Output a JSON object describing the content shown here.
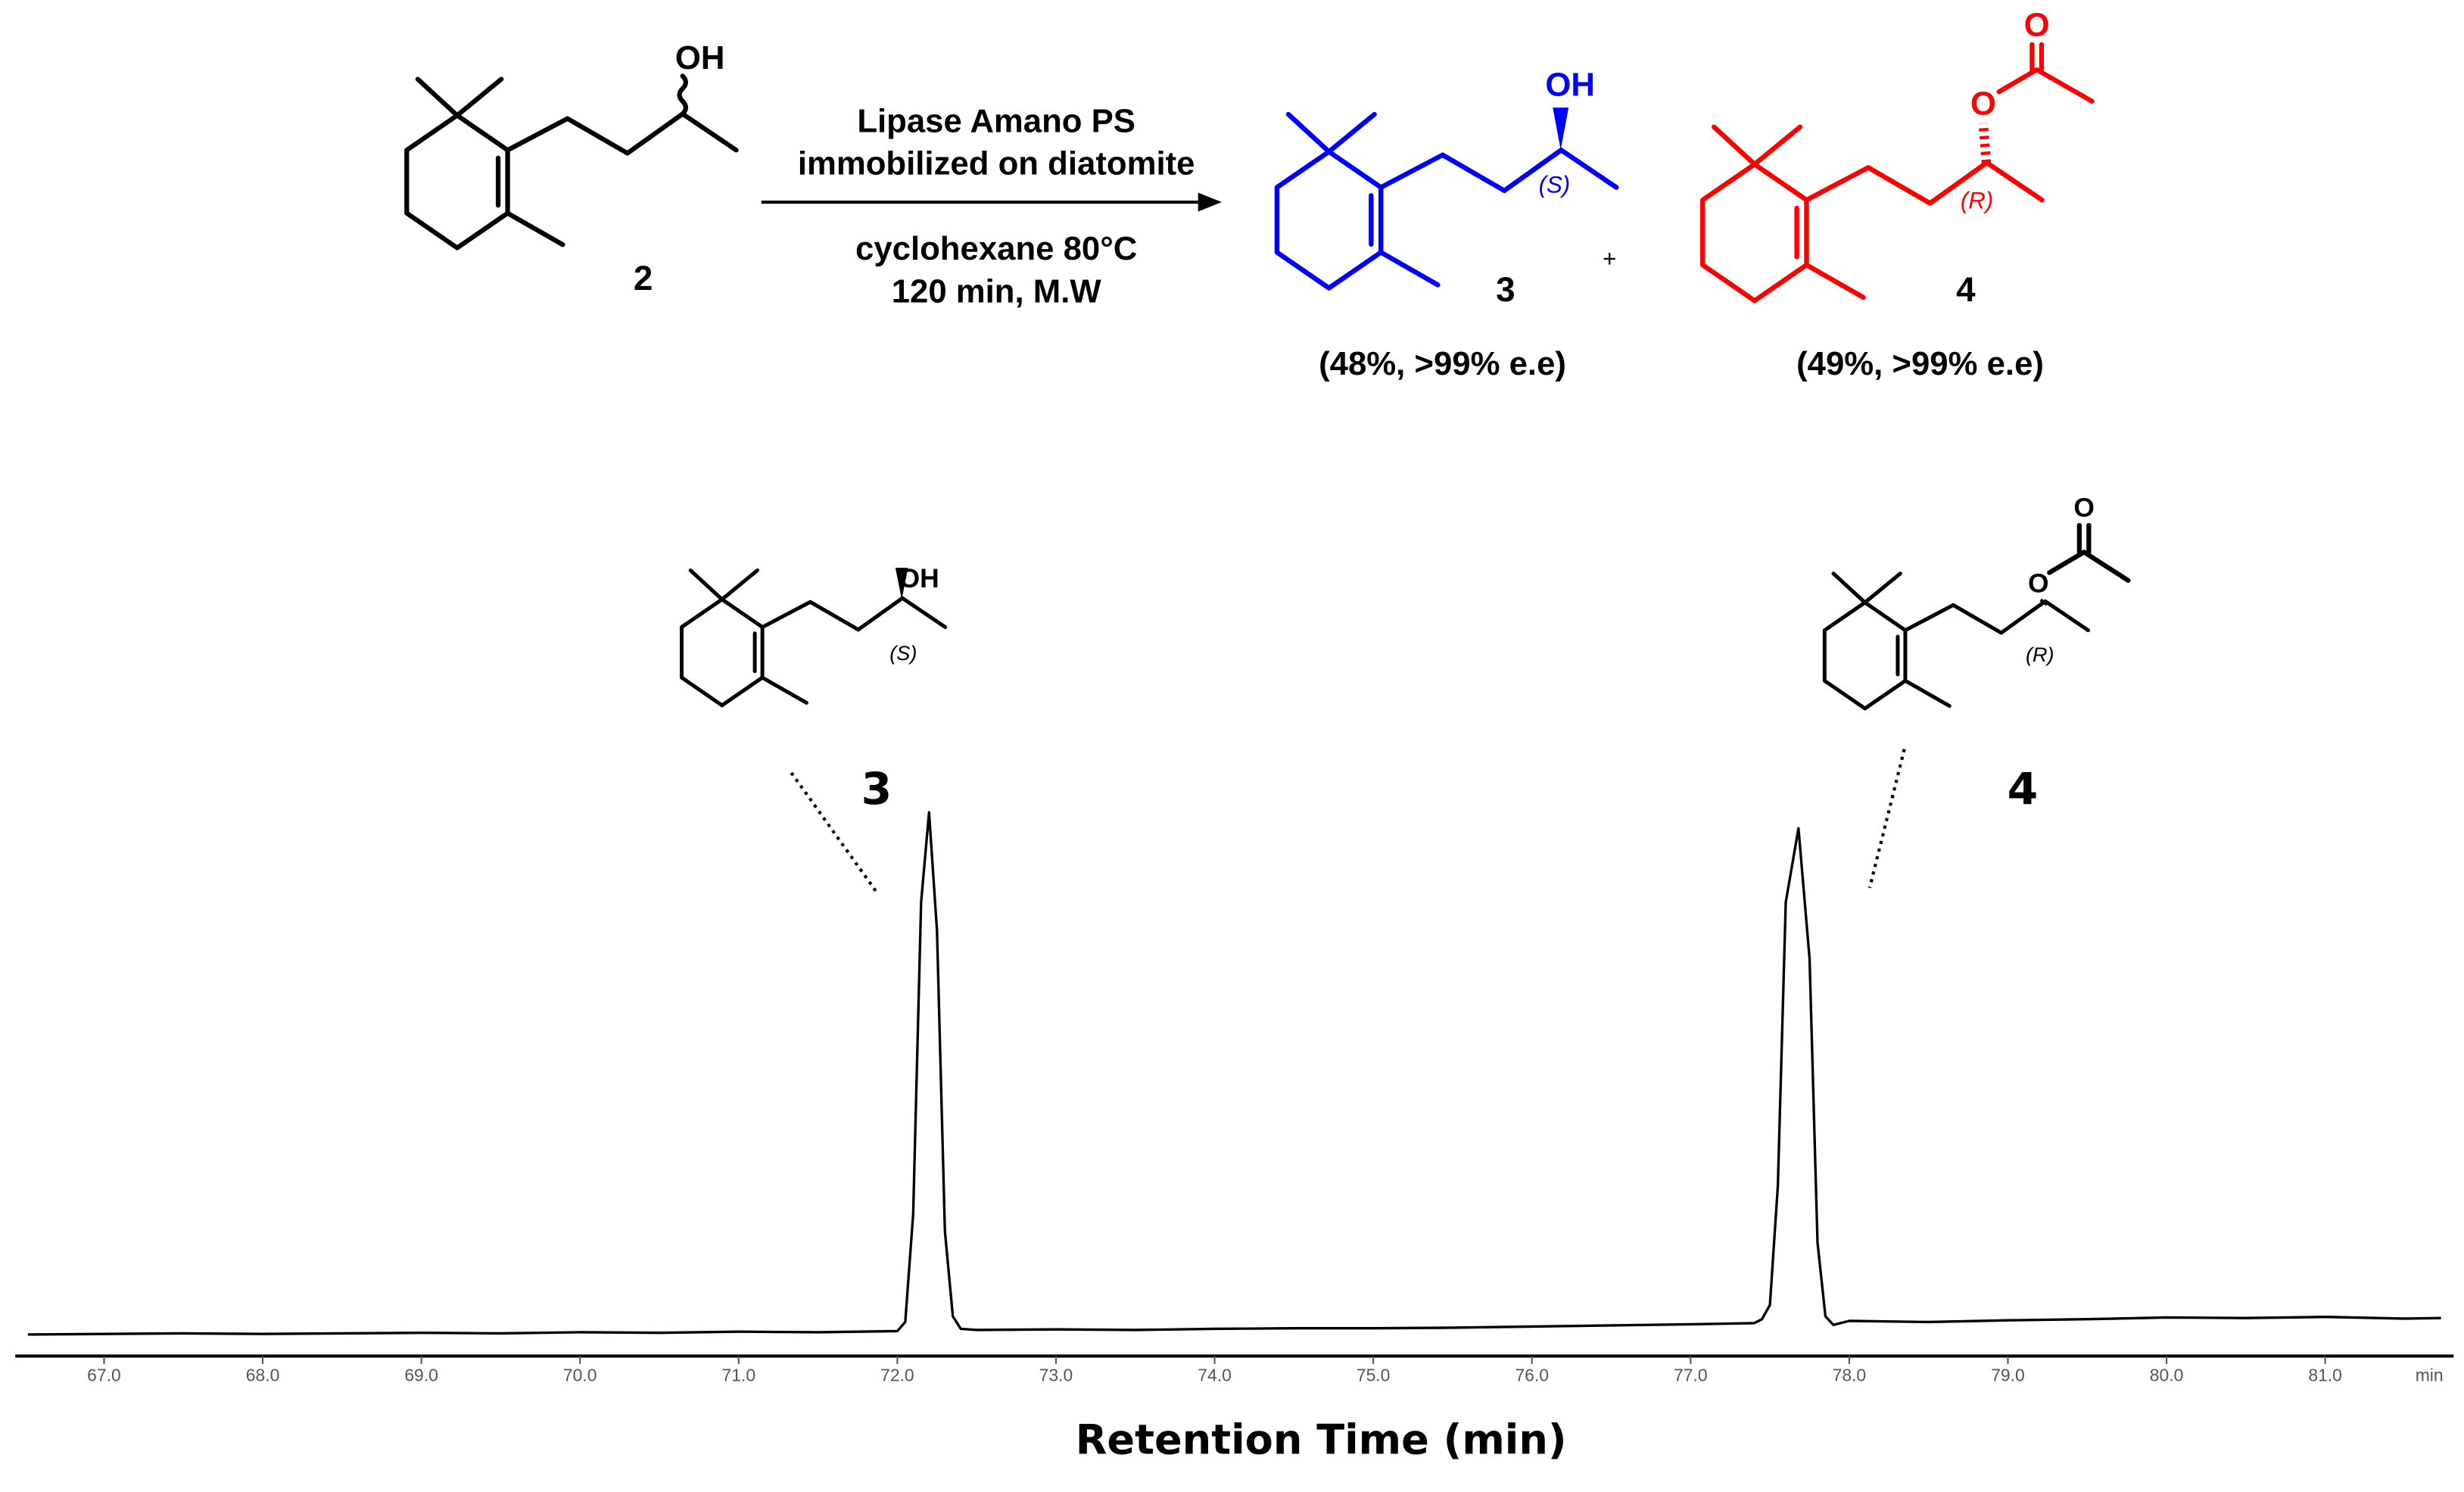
{
  "scheme": {
    "reagents": [
      "Lipase Amano PS",
      "immobilized on diatomite",
      "cyclohexane 80°C",
      "120 min, M.W"
    ],
    "plus": "+",
    "compound_labels": [
      "2",
      "3",
      "4"
    ],
    "yields": [
      "(48%, >99% e.e)",
      "(49%, >99% e.e)"
    ],
    "atom_labels": [
      "OH",
      "OH",
      "(S)",
      "O",
      "O",
      "(R)"
    ]
  },
  "insets": {
    "atom_labels": [
      "OH",
      "(S)",
      "O",
      "O",
      "(R)"
    ]
  },
  "chart_data": {
    "type": "line",
    "xlabel": "Retention Time (min)",
    "xunit": "min",
    "annotations": [
      "3",
      "4"
    ],
    "xlim": [
      66.52,
      81.73
    ],
    "xticks": [
      {
        "value": 67,
        "label": "67.0"
      },
      {
        "value": 68,
        "label": "68.0"
      },
      {
        "value": 69,
        "label": "69.0"
      },
      {
        "value": 70,
        "label": "70.0"
      },
      {
        "value": 71,
        "label": "71.0"
      },
      {
        "value": 72,
        "label": "72.0"
      },
      {
        "value": 73,
        "label": "73.0"
      },
      {
        "value": 74,
        "label": "74.0"
      },
      {
        "value": 75,
        "label": "75.0"
      },
      {
        "value": 76,
        "label": "76.0"
      },
      {
        "value": 77,
        "label": "77.0"
      },
      {
        "value": 78,
        "label": "78.0"
      },
      {
        "value": 79,
        "label": "79.0"
      },
      {
        "value": 80,
        "label": "80.0"
      },
      {
        "value": 81,
        "label": "81.0"
      }
    ],
    "ylim": [
      0,
      100
    ],
    "x": [
      66.52,
      67,
      67.5,
      68,
      68.5,
      69,
      69.5,
      70,
      70.5,
      71,
      71.5,
      72,
      72.05,
      72.1,
      72.15,
      72.2,
      72.25,
      72.3,
      72.35,
      72.4,
      72.5,
      73,
      73.5,
      74,
      74.5,
      75,
      75.5,
      76,
      76.5,
      77,
      77.4,
      77.45,
      77.5,
      77.55,
      77.6,
      77.68,
      77.75,
      77.8,
      77.85,
      77.9,
      78,
      78.5,
      79,
      79.5,
      80,
      80.5,
      81,
      81.5,
      81.73
    ],
    "series": [
      {
        "color": "#000000",
        "values": [
          3.8,
          3.9,
          4.0,
          3.9,
          4.0,
          4.1,
          4.0,
          4.2,
          4.1,
          4.3,
          4.2,
          4.4,
          6,
          25,
          80,
          95.8,
          75,
          22,
          7,
          4.8,
          4.6,
          4.7,
          4.6,
          4.8,
          4.9,
          4.9,
          5.0,
          5.2,
          5.4,
          5.6,
          5.8,
          6.5,
          9,
          30,
          80,
          93,
          70,
          20,
          7,
          5.5,
          6.2,
          6.0,
          6.3,
          6.5,
          6.8,
          6.7,
          6.9,
          6.6,
          6.7
        ]
      }
    ]
  }
}
